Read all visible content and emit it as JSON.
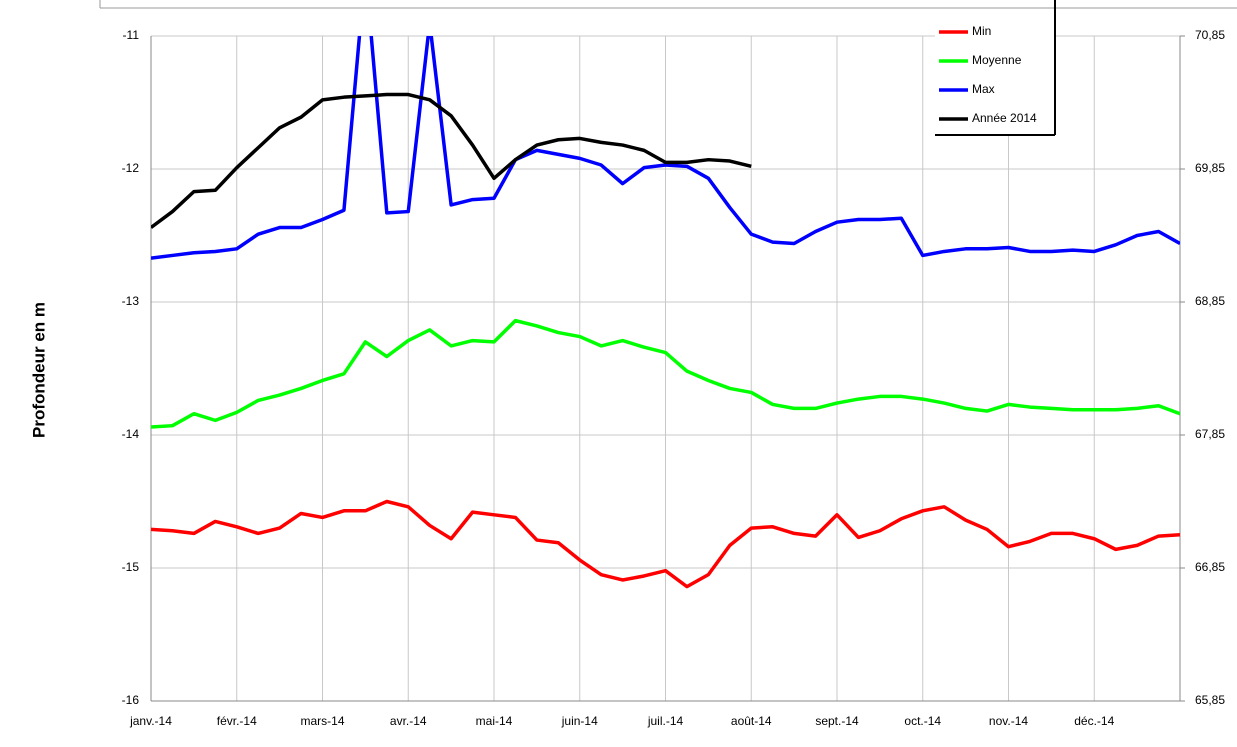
{
  "chart_data": {
    "type": "line",
    "y_label": "Profondeur en m",
    "xlim": [
      0,
      12
    ],
    "xticks": [
      {
        "value": 0,
        "label": "janv.-14"
      },
      {
        "value": 1,
        "label": "févr.-14"
      },
      {
        "value": 2,
        "label": "mars-14"
      },
      {
        "value": 3,
        "label": "avr.-14"
      },
      {
        "value": 4,
        "label": "mai-14"
      },
      {
        "value": 5,
        "label": "juin-14"
      },
      {
        "value": 6,
        "label": "juil.-14"
      },
      {
        "value": 7,
        "label": "août-14"
      },
      {
        "value": 8,
        "label": "sept.-14"
      },
      {
        "value": 9,
        "label": "oct.-14"
      },
      {
        "value": 10,
        "label": "nov.-14"
      },
      {
        "value": 11,
        "label": "déc.-14"
      }
    ],
    "ylim": [
      -16,
      -11
    ],
    "yticks": [
      -16,
      -15,
      -14,
      -13,
      -12,
      -11
    ],
    "y2lim": [
      65.85,
      70.85
    ],
    "y2ticks": [
      {
        "value": 65.85,
        "label": "65,85"
      },
      {
        "value": 66.85,
        "label": "66,85"
      },
      {
        "value": 67.85,
        "label": "67,85"
      },
      {
        "value": 68.85,
        "label": "68,85"
      },
      {
        "value": 69.85,
        "label": "69,85"
      },
      {
        "value": 70.85,
        "label": "70,85"
      }
    ],
    "grid": true,
    "legend": "top-right",
    "x": [
      0,
      0.25,
      0.5,
      0.75,
      1,
      1.25,
      1.5,
      1.75,
      2,
      2.25,
      2.5,
      2.75,
      3,
      3.25,
      3.5,
      3.75,
      4,
      4.25,
      4.5,
      4.75,
      5,
      5.25,
      5.5,
      5.75,
      6,
      6.25,
      6.5,
      6.75,
      7,
      7.25,
      7.5,
      7.75,
      8,
      8.25,
      8.5,
      8.75,
      9,
      9.25,
      9.5,
      9.75,
      10,
      10.25,
      10.5,
      10.75,
      11,
      11.25,
      11.5,
      11.75,
      12
    ],
    "series": [
      {
        "name": "Min",
        "color": "#ff0000",
        "values": [
          -14.71,
          -14.72,
          -14.74,
          -14.65,
          -14.69,
          -14.74,
          -14.7,
          -14.59,
          -14.62,
          -14.57,
          -14.57,
          -14.5,
          -14.54,
          -14.68,
          -14.78,
          -14.58,
          -14.6,
          -14.62,
          -14.79,
          -14.81,
          -14.94,
          -15.05,
          -15.09,
          -15.06,
          -15.02,
          -15.14,
          -15.05,
          -14.83,
          -14.7,
          -14.69,
          -14.74,
          -14.76,
          -14.6,
          -14.77,
          -14.72,
          -14.63,
          -14.57,
          -14.54,
          -14.64,
          -14.71,
          -14.84,
          -14.8,
          -14.74,
          -14.74,
          -14.78,
          -14.86,
          -14.83,
          -14.76,
          -14.75
        ]
      },
      {
        "name": "Moyenne",
        "color": "#00ff00",
        "values": [
          -13.94,
          -13.93,
          -13.84,
          -13.89,
          -13.83,
          -13.74,
          -13.7,
          -13.65,
          -13.59,
          -13.54,
          -13.3,
          -13.41,
          -13.29,
          -13.21,
          -13.33,
          -13.29,
          -13.3,
          -13.14,
          -13.18,
          -13.23,
          -13.26,
          -13.33,
          -13.29,
          -13.34,
          -13.38,
          -13.52,
          -13.59,
          -13.65,
          -13.68,
          -13.77,
          -13.8,
          -13.8,
          -13.76,
          -13.73,
          -13.71,
          -13.71,
          -13.73,
          -13.76,
          -13.8,
          -13.82,
          -13.77,
          -13.79,
          -13.8,
          -13.81,
          -13.81,
          -13.81,
          -13.8,
          -13.78,
          -13.84
        ]
      },
      {
        "name": "Max",
        "color": "#0000ff",
        "values": [
          -12.67,
          -12.65,
          -12.63,
          -12.62,
          -12.6,
          -12.49,
          -12.44,
          -12.44,
          -12.38,
          -12.31,
          -10.5,
          -12.33,
          -12.32,
          -10.9,
          -12.27,
          -12.23,
          -12.22,
          -11.93,
          -11.86,
          -11.89,
          -11.92,
          -11.97,
          -12.11,
          -11.99,
          -11.97,
          -11.98,
          -12.07,
          -12.29,
          -12.49,
          -12.55,
          -12.56,
          -12.47,
          -12.4,
          -12.38,
          -12.38,
          -12.37,
          -12.65,
          -12.62,
          -12.6,
          -12.6,
          -12.59,
          -12.62,
          -12.62,
          -12.61,
          -12.62,
          -12.57,
          -12.5,
          -12.47,
          -12.56
        ]
      },
      {
        "name": "Année 2014",
        "color": "#000000",
        "values": [
          -12.44,
          -12.32,
          -12.17,
          -12.16,
          -11.99,
          -11.84,
          -11.69,
          -11.61,
          -11.48,
          -11.46,
          -11.45,
          -11.44,
          -11.44,
          -11.48,
          -11.6,
          -11.82,
          -12.07,
          -11.93,
          -11.82,
          -11.78,
          -11.77,
          -11.8,
          -11.82,
          -11.86,
          -11.95,
          -11.95,
          -11.93,
          -11.94,
          -11.98,
          null,
          null,
          null,
          null,
          null,
          null,
          null,
          null,
          null,
          null,
          null,
          null,
          null,
          null,
          null,
          null,
          null,
          null,
          null,
          null
        ]
      }
    ]
  }
}
